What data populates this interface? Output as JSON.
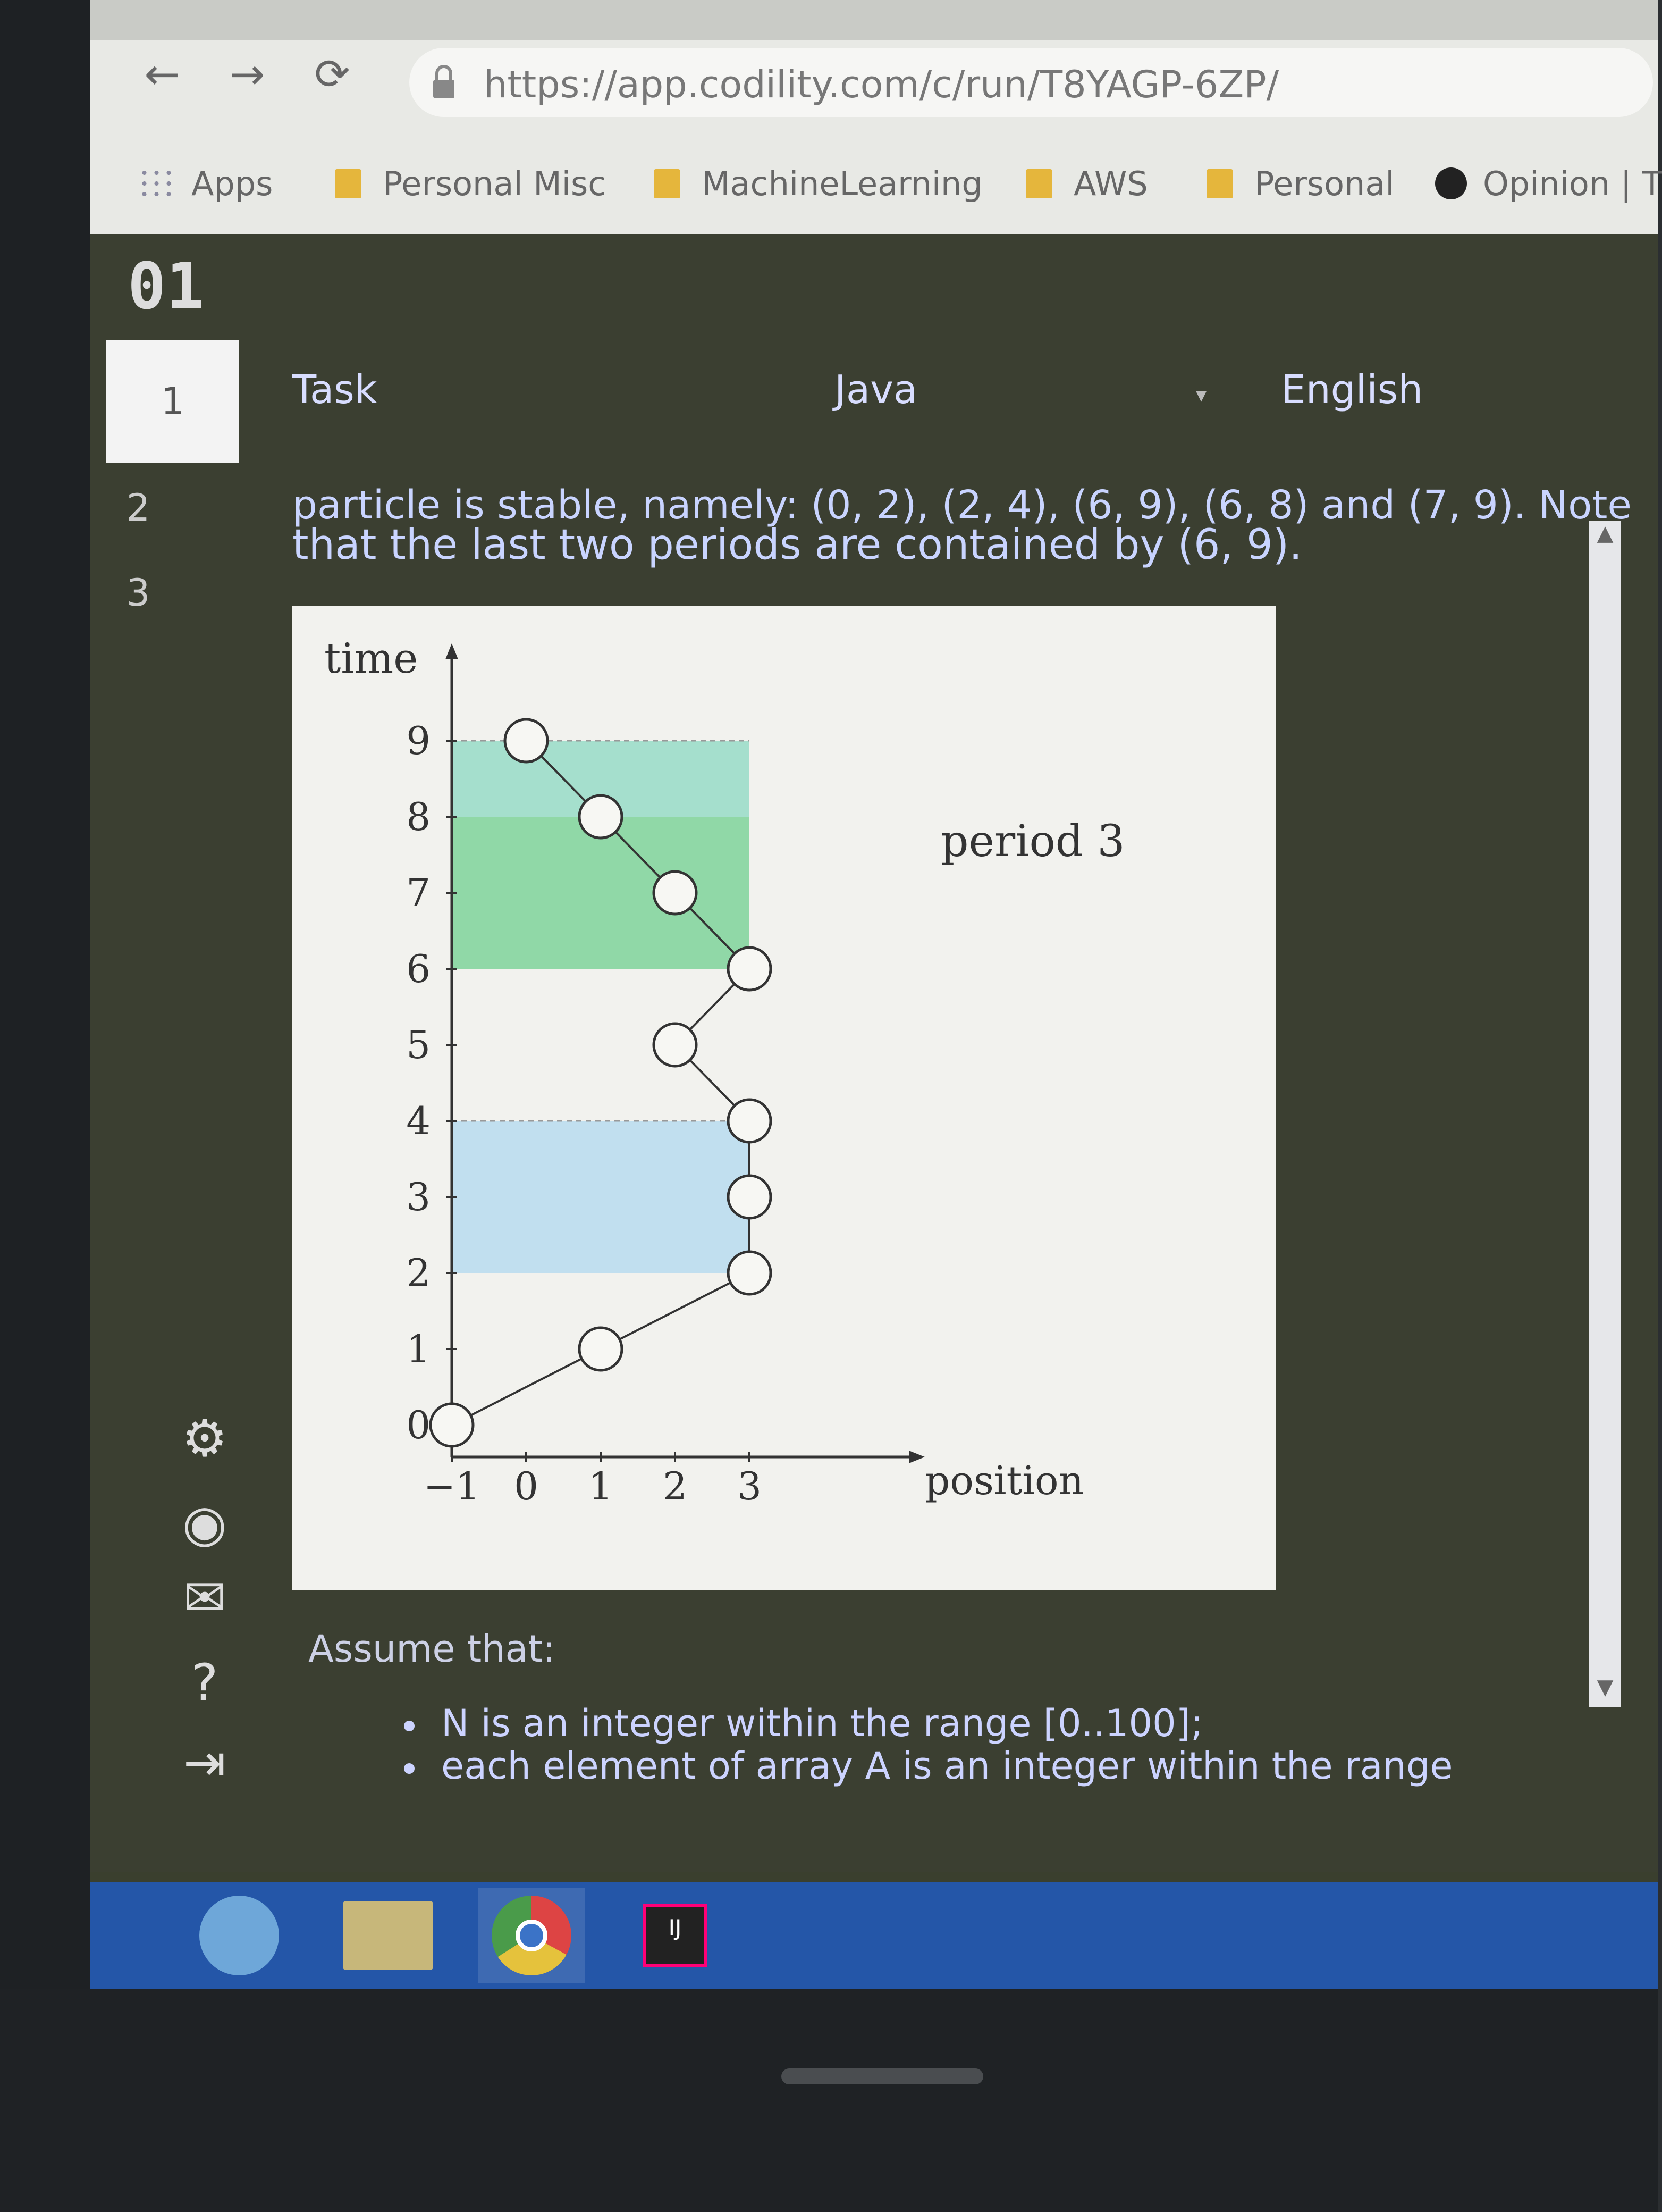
{
  "browser": {
    "url": "https://app.codility.com/c/run/T8YAGP-6ZP/",
    "bookmarks": [
      "Apps",
      "Personal Misc",
      "MachineLearning",
      "AWS",
      "Personal",
      "Opinion | T"
    ]
  },
  "app": {
    "logo": "01",
    "steps": [
      "1",
      "2",
      "3"
    ],
    "tabs": {
      "task": "Task",
      "language": "Java",
      "human_language": "English"
    },
    "description_cut": "particle is stable, namely: (0, 2), (2, 4), (6, 9), (6, 8) and (7, 9). Note",
    "description": "that the last two periods are contained by (6, 9).",
    "assume_heading": "Assume that:",
    "bullets": [
      "N is an integer within the range [0..100];",
      "each element of array A is an integer within the range"
    ]
  },
  "chart_data": {
    "type": "line",
    "xlabel": "position",
    "ylabel": "time",
    "x_ticks": [
      -1,
      0,
      1,
      2,
      3
    ],
    "y_ticks": [
      0,
      1,
      2,
      3,
      4,
      5,
      6,
      7,
      8,
      9
    ],
    "annotation": "period 3",
    "points": [
      {
        "x": -1,
        "y": 0
      },
      {
        "x": 1,
        "y": 1
      },
      {
        "x": 3,
        "y": 2
      },
      {
        "x": 3,
        "y": 3
      },
      {
        "x": 3,
        "y": 4
      },
      {
        "x": 2,
        "y": 5
      },
      {
        "x": 3,
        "y": 6
      },
      {
        "x": 2,
        "y": 7
      },
      {
        "x": 1,
        "y": 8
      },
      {
        "x": 0,
        "y": 9
      }
    ],
    "shaded_periods": [
      {
        "from": 2,
        "to": 4,
        "color": "#b9dcef"
      },
      {
        "from": 6,
        "to": 9,
        "color": "#7fd39a"
      },
      {
        "from": 8,
        "to": 9,
        "color": "#a9e1d4"
      }
    ],
    "xlim": [
      -1,
      5
    ],
    "ylim": [
      0,
      10
    ]
  }
}
